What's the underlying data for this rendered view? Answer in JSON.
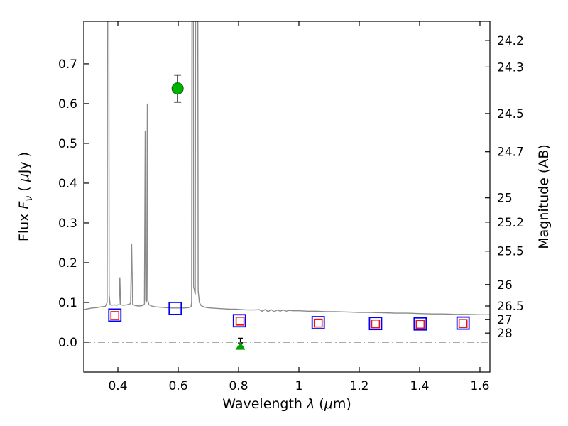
{
  "chart_data": {
    "type": "line",
    "title": "",
    "xlabel_parts": [
      {
        "t": "Wavelength  ",
        "i": false,
        "sub": false
      },
      {
        "t": "λ",
        "i": true,
        "sub": false
      },
      {
        "t": " (",
        "i": false,
        "sub": false
      },
      {
        "t": "μ",
        "i": true,
        "sub": false
      },
      {
        "t": "m)",
        "i": false,
        "sub": false
      }
    ],
    "ylabel_left_parts": [
      {
        "t": "Flux  ",
        "i": false,
        "sub": false
      },
      {
        "t": "F",
        "i": true,
        "sub": false
      },
      {
        "t": "ν",
        "i": true,
        "sub": true
      },
      {
        "t": "  ( ",
        "i": false,
        "sub": false
      },
      {
        "t": "μ",
        "i": true,
        "sub": false
      },
      {
        "t": "Jy )",
        "i": false,
        "sub": false
      }
    ],
    "ylabel_right": "Magnitude (AB)",
    "xlim": [
      0.287,
      1.633
    ],
    "ylim": [
      -0.075,
      0.807
    ],
    "grid": false,
    "legend": "none",
    "x_ticks": [
      {
        "v": 0.4,
        "label": "0.4"
      },
      {
        "v": 0.6,
        "label": "0.6"
      },
      {
        "v": 0.8,
        "label": "0.8"
      },
      {
        "v": 1.0,
        "label": "1"
      },
      {
        "v": 1.2,
        "label": "1.2"
      },
      {
        "v": 1.4,
        "label": "1.4"
      },
      {
        "v": 1.6,
        "label": "1.6"
      }
    ],
    "y_ticks_left": [
      {
        "v": 0.0,
        "label": "0.0"
      },
      {
        "v": 0.1,
        "label": "0.1"
      },
      {
        "v": 0.2,
        "label": "0.2"
      },
      {
        "v": 0.3,
        "label": "0.3"
      },
      {
        "v": 0.4,
        "label": "0.4"
      },
      {
        "v": 0.5,
        "label": "0.5"
      },
      {
        "v": 0.6,
        "label": "0.6"
      },
      {
        "v": 0.7,
        "label": "0.7"
      }
    ],
    "y_ticks_right": [
      {
        "mag": "24.2",
        "flux": 0.759
      },
      {
        "mag": "24.3",
        "flux": 0.692
      },
      {
        "mag": "24.5",
        "flux": 0.575
      },
      {
        "mag": "24.7",
        "flux": 0.479
      },
      {
        "mag": "25",
        "flux": 0.363
      },
      {
        "mag": "25.2",
        "flux": 0.302
      },
      {
        "mag": "25.5",
        "flux": 0.229
      },
      {
        "mag": "26",
        "flux": 0.145
      },
      {
        "mag": "26.5",
        "flux": 0.091
      },
      {
        "mag": "27",
        "flux": 0.0575
      },
      {
        "mag": "28",
        "flux": 0.0229
      }
    ],
    "zero_line_flux": 0.0,
    "colors": {
      "spectrum": "#8a8a8a",
      "model_square": "#0000ff",
      "observed_square": "#ee1111",
      "detection": "#00b200",
      "limit": "#00a000",
      "errorbar": "#000000",
      "zero_line": "#555555",
      "frame": "#000000"
    },
    "spectrum_points": [
      [
        0.287,
        0.082
      ],
      [
        0.3,
        0.084
      ],
      [
        0.315,
        0.086
      ],
      [
        0.33,
        0.087
      ],
      [
        0.345,
        0.089
      ],
      [
        0.358,
        0.09
      ],
      [
        0.3645,
        0.1
      ],
      [
        0.366,
        1.2
      ],
      [
        0.3695,
        1.2
      ],
      [
        0.371,
        0.12
      ],
      [
        0.374,
        0.094
      ],
      [
        0.38,
        0.093
      ],
      [
        0.388,
        0.094
      ],
      [
        0.396,
        0.093
      ],
      [
        0.404,
        0.095
      ],
      [
        0.4065,
        0.163
      ],
      [
        0.409,
        0.094
      ],
      [
        0.418,
        0.093
      ],
      [
        0.43,
        0.094
      ],
      [
        0.442,
        0.097
      ],
      [
        0.4455,
        0.248
      ],
      [
        0.449,
        0.095
      ],
      [
        0.458,
        0.092
      ],
      [
        0.47,
        0.091
      ],
      [
        0.482,
        0.092
      ],
      [
        0.488,
        0.096
      ],
      [
        0.4905,
        0.532
      ],
      [
        0.4925,
        0.105
      ],
      [
        0.4955,
        0.1
      ],
      [
        0.4975,
        0.6
      ],
      [
        0.4995,
        0.105
      ],
      [
        0.503,
        0.094
      ],
      [
        0.512,
        0.091
      ],
      [
        0.524,
        0.089
      ],
      [
        0.54,
        0.088
      ],
      [
        0.56,
        0.087
      ],
      [
        0.58,
        0.086
      ],
      [
        0.6,
        0.086
      ],
      [
        0.618,
        0.086
      ],
      [
        0.634,
        0.087
      ],
      [
        0.6425,
        0.09
      ],
      [
        0.6445,
        0.1
      ],
      [
        0.646,
        1.2
      ],
      [
        0.6495,
        1.2
      ],
      [
        0.651,
        0.14
      ],
      [
        0.6565,
        0.12
      ],
      [
        0.658,
        1.2
      ],
      [
        0.6645,
        1.2
      ],
      [
        0.666,
        0.13
      ],
      [
        0.67,
        0.1
      ],
      [
        0.676,
        0.092
      ],
      [
        0.684,
        0.089
      ],
      [
        0.695,
        0.087
      ],
      [
        0.71,
        0.086
      ],
      [
        0.73,
        0.085
      ],
      [
        0.75,
        0.084
      ],
      [
        0.77,
        0.083
      ],
      [
        0.79,
        0.083
      ],
      [
        0.81,
        0.082
      ],
      [
        0.83,
        0.081
      ],
      [
        0.85,
        0.081
      ],
      [
        0.868,
        0.082
      ],
      [
        0.878,
        0.078
      ],
      [
        0.888,
        0.082
      ],
      [
        0.898,
        0.077
      ],
      [
        0.908,
        0.082
      ],
      [
        0.918,
        0.077
      ],
      [
        0.928,
        0.081
      ],
      [
        0.938,
        0.078
      ],
      [
        0.948,
        0.081
      ],
      [
        0.958,
        0.078
      ],
      [
        0.968,
        0.08
      ],
      [
        0.98,
        0.079
      ],
      [
        1.0,
        0.079
      ],
      [
        1.03,
        0.078
      ],
      [
        1.06,
        0.078
      ],
      [
        1.09,
        0.077
      ],
      [
        1.12,
        0.077
      ],
      [
        1.16,
        0.076
      ],
      [
        1.2,
        0.075
      ],
      [
        1.24,
        0.075
      ],
      [
        1.28,
        0.074
      ],
      [
        1.32,
        0.073
      ],
      [
        1.36,
        0.073
      ],
      [
        1.4,
        0.072
      ],
      [
        1.44,
        0.071
      ],
      [
        1.48,
        0.071
      ],
      [
        1.52,
        0.07
      ],
      [
        1.56,
        0.07
      ],
      [
        1.6,
        0.069
      ],
      [
        1.633,
        0.069
      ]
    ],
    "model_squares": [
      [
        0.39,
        0.068
      ],
      [
        0.59,
        0.085
      ],
      [
        0.803,
        0.054
      ],
      [
        1.064,
        0.049
      ],
      [
        1.254,
        0.047
      ],
      [
        1.402,
        0.046
      ],
      [
        1.544,
        0.048
      ]
    ],
    "observed_squares": [
      [
        0.39,
        0.067
      ],
      [
        0.805,
        0.053
      ],
      [
        1.064,
        0.048
      ],
      [
        1.254,
        0.046
      ],
      [
        1.402,
        0.045
      ],
      [
        1.544,
        0.047
      ]
    ],
    "detection_point": {
      "x": 0.598,
      "flux": 0.638,
      "err": 0.034
    },
    "limit_point": {
      "x": 0.806,
      "flux": -0.01
    },
    "limit_errorbar": {
      "x": 0.806,
      "flux": 0.004,
      "err": 0.006
    }
  }
}
